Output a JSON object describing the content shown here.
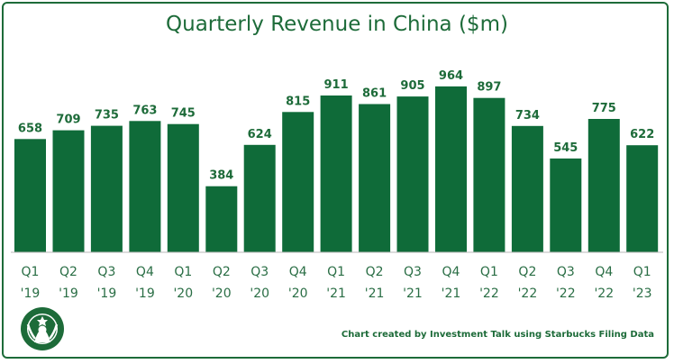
{
  "chart_data": {
    "type": "bar",
    "title": "Quarterly Revenue in China ($m)",
    "categories": [
      [
        "Q1",
        "'19"
      ],
      [
        "Q2",
        "'19"
      ],
      [
        "Q3",
        "'19"
      ],
      [
        "Q4",
        "'19"
      ],
      [
        "Q1",
        "'20"
      ],
      [
        "Q2",
        "'20"
      ],
      [
        "Q3",
        "'20"
      ],
      [
        "Q4",
        "'20"
      ],
      [
        "Q1",
        "'21"
      ],
      [
        "Q2",
        "'21"
      ],
      [
        "Q3",
        "'21"
      ],
      [
        "Q4",
        "'21"
      ],
      [
        "Q1",
        "'22"
      ],
      [
        "Q2",
        "'22"
      ],
      [
        "Q3",
        "'22"
      ],
      [
        "Q4",
        "'22"
      ],
      [
        "Q1",
        "'23"
      ]
    ],
    "values": [
      658,
      709,
      735,
      763,
      745,
      384,
      624,
      815,
      911,
      861,
      905,
      964,
      897,
      734,
      545,
      775,
      622
    ],
    "ylim": [
      0,
      1000
    ],
    "grid": false,
    "legend": "none",
    "bar_color": "#0f6b39"
  },
  "credit": "Chart created by Investment Talk using Starbucks Filing Data",
  "logo_icon": "starbucks-siren-logo"
}
